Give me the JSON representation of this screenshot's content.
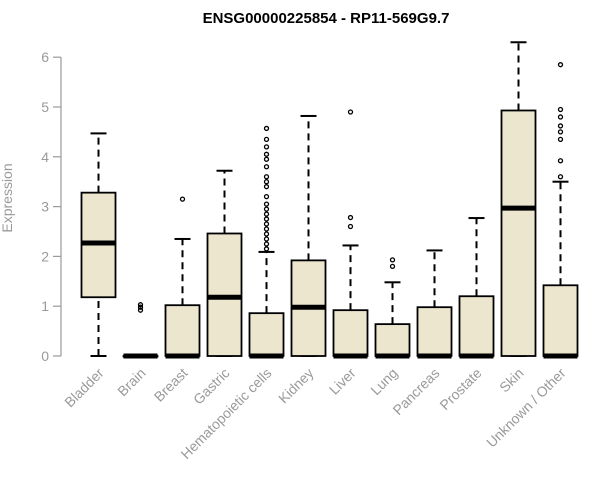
{
  "chart_data": {
    "type": "boxplot",
    "title": "ENSG00000225854 - RP11-569G9.7",
    "ylabel": "Expression",
    "ylim": [
      0,
      6.3
    ],
    "yticks": [
      0,
      1,
      2,
      3,
      4,
      5,
      6
    ],
    "box_color": "#ece6cf",
    "grid": false,
    "categories": [
      "Bladder",
      "Brain",
      "Breast",
      "Gastric",
      "Hematopoietic cells",
      "Kidney",
      "Liver",
      "Lung",
      "Pancreas",
      "Prostate",
      "Skin",
      "Unknown / Other"
    ],
    "boxes": [
      {
        "min": 0,
        "q1": 1.18,
        "median": 2.27,
        "q3": 3.28,
        "max": 4.47,
        "outliers": []
      },
      {
        "min": 0,
        "q1": 0,
        "median": 0,
        "q3": 0,
        "max": 0,
        "outliers": [
          0.92,
          0.98,
          1.03
        ]
      },
      {
        "min": 0,
        "q1": 0,
        "median": 0,
        "q3": 1.02,
        "max": 2.35,
        "outliers": [
          3.15
        ]
      },
      {
        "min": 0,
        "q1": 0,
        "median": 1.18,
        "q3": 2.46,
        "max": 3.72,
        "outliers": []
      },
      {
        "min": 0,
        "q1": 0,
        "median": 0,
        "q3": 0.86,
        "max": 2.09,
        "outliers": [
          2.15,
          2.25,
          2.35,
          2.45,
          2.55,
          2.65,
          2.75,
          2.85,
          2.95,
          3.05,
          3.2,
          3.4,
          3.5,
          3.6,
          3.8,
          3.95,
          4.05,
          4.2,
          4.35,
          4.57
        ]
      },
      {
        "min": 0,
        "q1": 0,
        "median": 0.98,
        "q3": 1.92,
        "max": 4.82,
        "outliers": []
      },
      {
        "min": 0,
        "q1": 0,
        "median": 0,
        "q3": 0.92,
        "max": 2.22,
        "outliers": [
          2.6,
          2.78,
          4.9
        ]
      },
      {
        "min": 0,
        "q1": 0,
        "median": 0,
        "q3": 0.64,
        "max": 1.48,
        "outliers": [
          1.8,
          1.93
        ]
      },
      {
        "min": 0,
        "q1": 0,
        "median": 0,
        "q3": 0.98,
        "max": 2.12,
        "outliers": []
      },
      {
        "min": 0,
        "q1": 0,
        "median": 0,
        "q3": 1.2,
        "max": 2.77,
        "outliers": []
      },
      {
        "min": 0,
        "q1": 0,
        "median": 2.97,
        "q3": 4.93,
        "max": 6.3,
        "outliers": []
      },
      {
        "min": 0,
        "q1": 0,
        "median": 0,
        "q3": 1.42,
        "max": 3.5,
        "outliers": [
          3.6,
          3.92,
          4.35,
          4.5,
          4.62,
          4.8,
          4.95,
          5.85
        ]
      }
    ]
  }
}
